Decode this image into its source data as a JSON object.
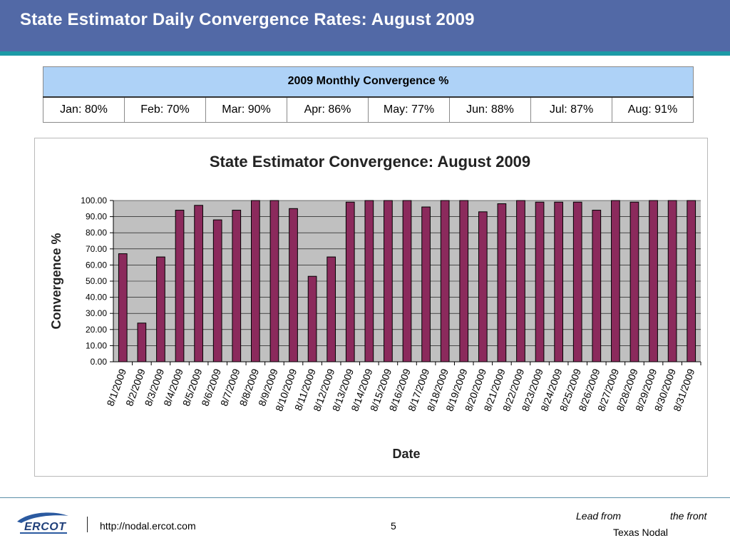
{
  "slide": {
    "title": "State Estimator Daily Convergence Rates: August 2009"
  },
  "monthly_table": {
    "header": "2009 Monthly Convergence %",
    "cells": [
      "Jan: 80%",
      "Feb: 70%",
      "Mar: 90%",
      "Apr: 86%",
      "May: 77%",
      "Jun: 88%",
      "Jul: 87%",
      "Aug: 91%"
    ]
  },
  "footer": {
    "logo_text": "ERCOT",
    "url": "http://nodal.ercot.com",
    "page": "5",
    "lead_from": "Lead from",
    "the_front": "the front",
    "org": "Texas Nodal"
  },
  "colors": {
    "header_bg": "#5269a6",
    "accent_line": "#1c9aa6",
    "table_header_bg": "#aed2f7",
    "bar_fill": "#8b2a5c",
    "plot_bg": "#c0c0c0"
  },
  "chart_data": {
    "type": "bar",
    "title": "State Estimator Convergence: August 2009",
    "xlabel": "Date",
    "ylabel": "Convergence %",
    "ylim": [
      0,
      100
    ],
    "yticks": [
      "0.00",
      "10.00",
      "20.00",
      "30.00",
      "40.00",
      "50.00",
      "60.00",
      "70.00",
      "80.00",
      "90.00",
      "100.00"
    ],
    "grid": true,
    "categories": [
      "8/1/2009",
      "8/2/2009",
      "8/3/2009",
      "8/4/2009",
      "8/5/2009",
      "8/6/2009",
      "8/7/2009",
      "8/8/2009",
      "8/9/2009",
      "8/10/2009",
      "8/11/2009",
      "8/12/2009",
      "8/13/2009",
      "8/14/2009",
      "8/15/2009",
      "8/16/2009",
      "8/17/2009",
      "8/18/2009",
      "8/19/2009",
      "8/20/2009",
      "8/21/2009",
      "8/22/2009",
      "8/23/2009",
      "8/24/2009",
      "8/25/2009",
      "8/26/2009",
      "8/27/2009",
      "8/28/2009",
      "8/29/2009",
      "8/30/2009",
      "8/31/2009"
    ],
    "values": [
      67,
      24,
      65,
      94,
      97,
      88,
      94,
      100,
      100,
      95,
      53,
      65,
      99,
      100,
      100,
      100,
      96,
      100,
      100,
      93,
      98,
      100,
      99,
      99,
      99,
      94,
      100,
      99,
      100,
      100,
      100
    ]
  }
}
